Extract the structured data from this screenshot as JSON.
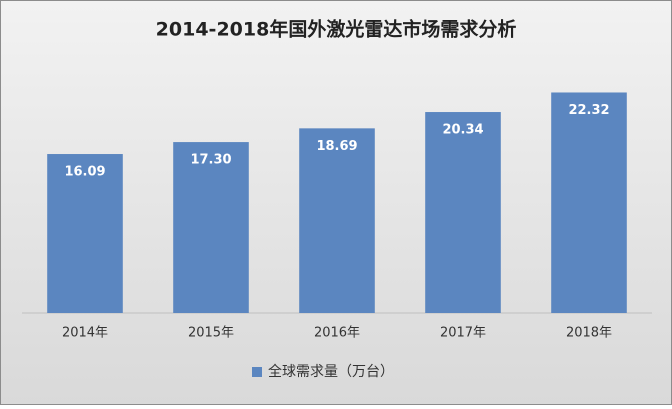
{
  "chart_data": {
    "type": "bar",
    "title": "2014-2018年国外激光雷达市场需求分析",
    "categories": [
      "2014年",
      "2015年",
      "2016年",
      "2017年",
      "2018年"
    ],
    "series": [
      {
        "name": "全球需求量（万台）",
        "color": "#5b86c0",
        "values": [
          16.09,
          17.3,
          18.69,
          20.34,
          22.32
        ],
        "value_labels": [
          "16.09",
          "17.30",
          "18.69",
          "20.34",
          "22.32"
        ]
      }
    ],
    "ylim": [
      0,
      25
    ],
    "legend": "bottom"
  }
}
